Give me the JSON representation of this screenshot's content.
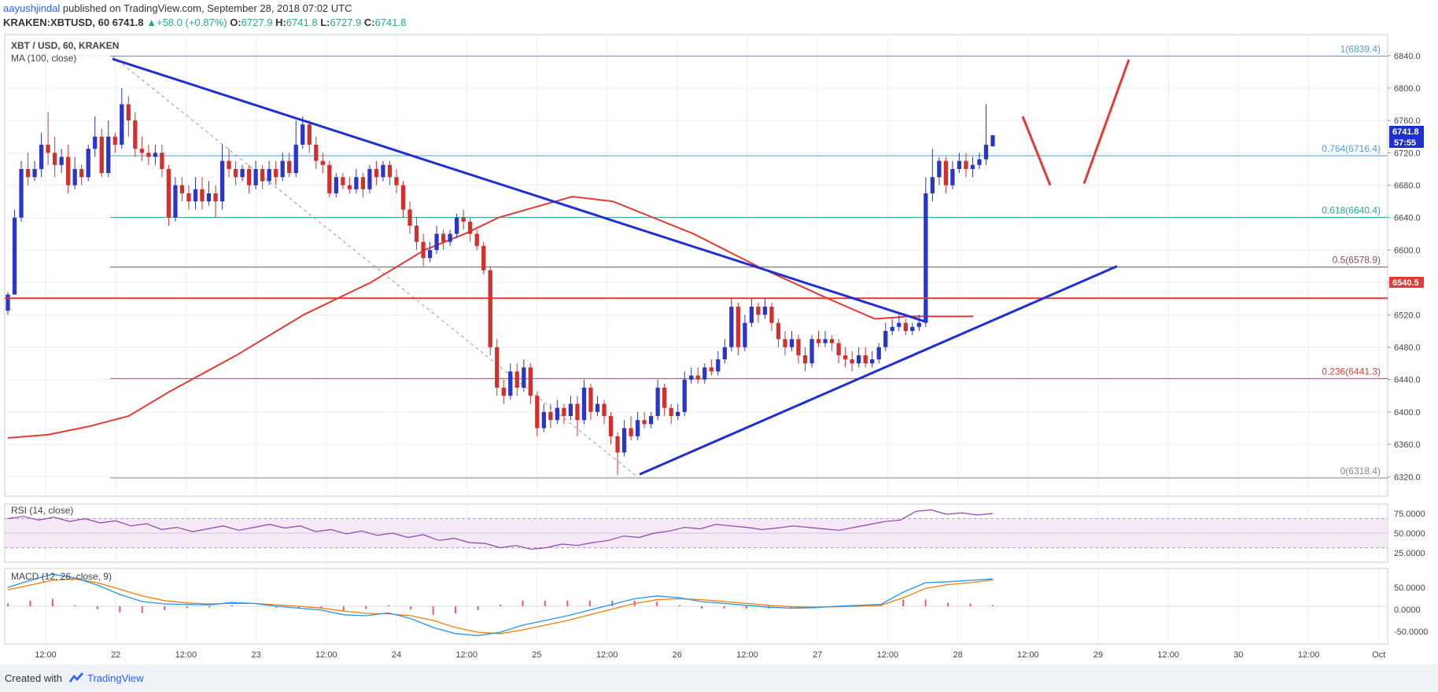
{
  "header": {
    "author": "aayushjindal",
    "published": " published on TradingView.com, September 28, 2018 07:02 UTC",
    "symbol": "KRAKEN:XBTUSD,",
    "interval": "60",
    "last": "6741.8",
    "change": "+58.0 (+0.87%)",
    "o_label": "O:",
    "o_value": "6727.9",
    "h_label": "H:",
    "h_value": "6741.8",
    "l_label": "L:",
    "l_value": "6727.9",
    "c_label": "C:",
    "c_value": "6741.8",
    "up_arrow": "▲"
  },
  "chart": {
    "title": "XBT / USD, 60, KRAKEN",
    "ma_label": "MA (100, close)",
    "price_badge": "6741.8",
    "countdown_badge": "57:55",
    "resistance_badge": "6540.5",
    "colors": {
      "up": "#2b35c7",
      "down": "#d32f2f",
      "ma": "#e53935",
      "trend": "#1f2fd1",
      "resistance": "#e53935",
      "forecast": "#e53935"
    }
  },
  "rsi": {
    "title": "RSI (14, close)",
    "ticks": [
      "75.0000",
      "50.0000",
      "25.0000"
    ]
  },
  "macd": {
    "title": "MACD (12, 26, close, 9)",
    "ticks": [
      "50.0000",
      "0.0000",
      "-50.0000"
    ]
  },
  "footer": {
    "created": "Created with",
    "brand": "TradingView"
  },
  "chart_data": {
    "type": "candlestick",
    "title": "XBT / USD, 60, KRAKEN",
    "y_ticks": [
      6840,
      6800,
      6760,
      6720,
      6680,
      6640,
      6600,
      6560,
      6520,
      6480,
      6440,
      6400,
      6360,
      6320
    ],
    "y_tick_labels": [
      "6840.0",
      "6800.0",
      "6760.0",
      "6720.0",
      "6680.0",
      "6640.0",
      "6600.0",
      "6560.0",
      "6520.0",
      "6480.0",
      "6440.0",
      "6400.0",
      "6360.0",
      "6320.0"
    ],
    "ylim": [
      6296,
      6866
    ],
    "x_ticks": [
      "12:00",
      "22",
      "12:00",
      "23",
      "12:00",
      "24",
      "12:00",
      "25",
      "12:00",
      "26",
      "12:00",
      "27",
      "12:00",
      "28",
      "12:00",
      "29",
      "12:00",
      "30",
      "12:00",
      "Oct"
    ],
    "fib_levels": [
      {
        "ratio": "1",
        "value": 6839.4,
        "label": "1(6839.4)",
        "color": "#4a9fd8"
      },
      {
        "ratio": "0.764",
        "value": 6716.4,
        "label": "0.764(6716.4)",
        "color": "#4a9fd8"
      },
      {
        "ratio": "0.618",
        "value": 6640.4,
        "label": "0.618(6640.4)",
        "color": "#26a69a"
      },
      {
        "ratio": "0.5",
        "value": 6578.9,
        "label": "0.5(6578.9)",
        "color": "#8b4a5a"
      },
      {
        "ratio": "0.236",
        "value": 6441.3,
        "label": "0.236(6441.3)",
        "color": "#e53935"
      },
      {
        "ratio": "0",
        "value": 6318.4,
        "label": "0(6318.4)",
        "color": "#888888"
      }
    ],
    "resistance": 6540.5,
    "last_price": 6741.8,
    "series": [
      {
        "name": "MA (100, close)",
        "values": [
          6368,
          6372,
          6382,
          6395,
          6425,
          6470,
          6520,
          6560,
          6600,
          6620,
          6640,
          6652,
          6666,
          6660,
          6620,
          6578,
          6540,
          6515,
          6518,
          6518
        ]
      }
    ],
    "ma_x": [
      0.0,
      0.03,
      0.06,
      0.09,
      0.12,
      0.17,
      0.22,
      0.27,
      0.31,
      0.34,
      0.365,
      0.39,
      0.42,
      0.45,
      0.51,
      0.56,
      0.61,
      0.645,
      0.67,
      0.718
    ],
    "candles": [
      [
        6525,
        6545,
        6520,
        6548
      ],
      [
        6545,
        6640,
        6545,
        6650
      ],
      [
        6640,
        6700,
        6635,
        6710
      ],
      [
        6700,
        6690,
        6680,
        6720
      ],
      [
        6690,
        6700,
        6685,
        6710
      ],
      [
        6700,
        6730,
        6690,
        6745
      ],
      [
        6730,
        6720,
        6705,
        6770
      ],
      [
        6720,
        6705,
        6690,
        6740
      ],
      [
        6705,
        6715,
        6695,
        6725
      ],
      [
        6715,
        6680,
        6670,
        6730
      ],
      [
        6680,
        6700,
        6675,
        6715
      ],
      [
        6700,
        6690,
        6680,
        6705
      ],
      [
        6690,
        6725,
        6685,
        6730
      ],
      [
        6725,
        6740,
        6715,
        6765
      ],
      [
        6740,
        6695,
        6690,
        6750
      ],
      [
        6695,
        6740,
        6690,
        6760
      ],
      [
        6740,
        6730,
        6720,
        6745
      ],
      [
        6730,
        6780,
        6725,
        6800
      ],
      [
        6780,
        6760,
        6740,
        6790
      ],
      [
        6760,
        6725,
        6715,
        6770
      ],
      [
        6725,
        6720,
        6710,
        6740
      ],
      [
        6720,
        6715,
        6705,
        6730
      ],
      [
        6715,
        6720,
        6705,
        6730
      ],
      [
        6720,
        6700,
        6690,
        6730
      ],
      [
        6700,
        6640,
        6630,
        6705
      ],
      [
        6640,
        6680,
        6635,
        6690
      ],
      [
        6680,
        6670,
        6660,
        6690
      ],
      [
        6670,
        6660,
        6650,
        6680
      ],
      [
        6660,
        6675,
        6650,
        6690
      ],
      [
        6675,
        6660,
        6650,
        6690
      ],
      [
        6660,
        6670,
        6655,
        6685
      ],
      [
        6670,
        6660,
        6640,
        6680
      ],
      [
        6660,
        6710,
        6650,
        6730
      ],
      [
        6710,
        6700,
        6690,
        6725
      ],
      [
        6700,
        6690,
        6680,
        6710
      ],
      [
        6690,
        6700,
        6685,
        6705
      ],
      [
        6700,
        6680,
        6670,
        6705
      ],
      [
        6680,
        6700,
        6675,
        6710
      ],
      [
        6700,
        6685,
        6675,
        6705
      ],
      [
        6685,
        6700,
        6680,
        6710
      ],
      [
        6700,
        6690,
        6680,
        6710
      ],
      [
        6690,
        6710,
        6685,
        6720
      ],
      [
        6710,
        6695,
        6690,
        6720
      ],
      [
        6695,
        6730,
        6690,
        6760
      ],
      [
        6730,
        6755,
        6725,
        6765
      ],
      [
        6755,
        6730,
        6720,
        6760
      ],
      [
        6730,
        6710,
        6700,
        6740
      ],
      [
        6710,
        6705,
        6695,
        6720
      ],
      [
        6705,
        6670,
        6665,
        6710
      ],
      [
        6670,
        6690,
        6665,
        6695
      ],
      [
        6690,
        6680,
        6675,
        6695
      ],
      [
        6680,
        6675,
        6670,
        6690
      ],
      [
        6675,
        6690,
        6670,
        6700
      ],
      [
        6690,
        6675,
        6665,
        6695
      ],
      [
        6675,
        6700,
        6670,
        6705
      ],
      [
        6700,
        6690,
        6680,
        6710
      ],
      [
        6690,
        6705,
        6685,
        6710
      ],
      [
        6705,
        6690,
        6680,
        6710
      ],
      [
        6690,
        6680,
        6670,
        6700
      ],
      [
        6680,
        6650,
        6640,
        6685
      ],
      [
        6650,
        6630,
        6620,
        6660
      ],
      [
        6630,
        6610,
        6600,
        6640
      ],
      [
        6610,
        6590,
        6580,
        6620
      ],
      [
        6590,
        6600,
        6585,
        6610
      ],
      [
        6600,
        6620,
        6595,
        6630
      ],
      [
        6620,
        6610,
        6600,
        6625
      ],
      [
        6610,
        6620,
        6605,
        6625
      ],
      [
        6620,
        6640,
        6615,
        6645
      ],
      [
        6640,
        6635,
        6625,
        6650
      ],
      [
        6635,
        6620,
        6610,
        6640
      ],
      [
        6620,
        6605,
        6600,
        6625
      ],
      [
        6605,
        6575,
        6570,
        6610
      ],
      [
        6575,
        6480,
        6470,
        6580
      ],
      [
        6480,
        6430,
        6420,
        6490
      ],
      [
        6430,
        6420,
        6410,
        6440
      ],
      [
        6420,
        6450,
        6415,
        6460
      ],
      [
        6450,
        6430,
        6420,
        6460
      ],
      [
        6430,
        6455,
        6425,
        6465
      ],
      [
        6455,
        6420,
        6410,
        6460
      ],
      [
        6420,
        6380,
        6370,
        6425
      ],
      [
        6380,
        6400,
        6375,
        6410
      ],
      [
        6400,
        6390,
        6380,
        6410
      ],
      [
        6390,
        6405,
        6385,
        6415
      ],
      [
        6405,
        6395,
        6385,
        6410
      ],
      [
        6395,
        6410,
        6390,
        6420
      ],
      [
        6410,
        6390,
        6370,
        6420
      ],
      [
        6390,
        6430,
        6385,
        6440
      ],
      [
        6430,
        6400,
        6390,
        6435
      ],
      [
        6400,
        6410,
        6395,
        6420
      ],
      [
        6410,
        6395,
        6385,
        6415
      ],
      [
        6395,
        6370,
        6360,
        6400
      ],
      [
        6370,
        6350,
        6322,
        6375
      ],
      [
        6350,
        6380,
        6345,
        6390
      ],
      [
        6380,
        6370,
        6365,
        6395
      ],
      [
        6370,
        6390,
        6365,
        6400
      ],
      [
        6390,
        6385,
        6380,
        6400
      ],
      [
        6385,
        6395,
        6380,
        6400
      ],
      [
        6395,
        6430,
        6390,
        6440
      ],
      [
        6430,
        6405,
        6395,
        6435
      ],
      [
        6405,
        6395,
        6385,
        6410
      ],
      [
        6395,
        6400,
        6390,
        6410
      ],
      [
        6400,
        6440,
        6395,
        6450
      ],
      [
        6440,
        6445,
        6435,
        6455
      ],
      [
        6445,
        6440,
        6435,
        6455
      ],
      [
        6440,
        6455,
        6435,
        6460
      ],
      [
        6455,
        6450,
        6445,
        6465
      ],
      [
        6450,
        6465,
        6445,
        6475
      ],
      [
        6465,
        6480,
        6460,
        6490
      ],
      [
        6480,
        6530,
        6475,
        6540
      ],
      [
        6530,
        6480,
        6470,
        6535
      ],
      [
        6480,
        6510,
        6475,
        6520
      ],
      [
        6510,
        6530,
        6505,
        6540
      ],
      [
        6530,
        6520,
        6510,
        6535
      ],
      [
        6520,
        6530,
        6515,
        6540
      ],
      [
        6530,
        6510,
        6500,
        6535
      ],
      [
        6510,
        6490,
        6480,
        6515
      ],
      [
        6490,
        6480,
        6470,
        6500
      ],
      [
        6480,
        6490,
        6475,
        6500
      ],
      [
        6490,
        6470,
        6460,
        6495
      ],
      [
        6470,
        6460,
        6450,
        6480
      ],
      [
        6460,
        6490,
        6455,
        6495
      ],
      [
        6490,
        6485,
        6480,
        6500
      ],
      [
        6485,
        6490,
        6480,
        6500
      ],
      [
        6490,
        6485,
        6475,
        6495
      ],
      [
        6485,
        6470,
        6460,
        6490
      ],
      [
        6470,
        6465,
        6455,
        6480
      ],
      [
        6465,
        6460,
        6450,
        6475
      ],
      [
        6460,
        6470,
        6455,
        6480
      ],
      [
        6470,
        6460,
        6455,
        6480
      ],
      [
        6460,
        6465,
        6455,
        6475
      ],
      [
        6465,
        6480,
        6460,
        6485
      ],
      [
        6480,
        6500,
        6475,
        6510
      ],
      [
        6500,
        6505,
        6495,
        6515
      ],
      [
        6505,
        6510,
        6500,
        6520
      ],
      [
        6510,
        6500,
        6495,
        6515
      ],
      [
        6500,
        6505,
        6495,
        6510
      ],
      [
        6505,
        6510,
        6500,
        6520
      ],
      [
        6510,
        6670,
        6505,
        6690
      ],
      [
        6670,
        6690,
        6660,
        6725
      ],
      [
        6690,
        6710,
        6680,
        6715
      ],
      [
        6710,
        6680,
        6670,
        6715
      ],
      [
        6680,
        6700,
        6675,
        6710
      ],
      [
        6700,
        6710,
        6695,
        6720
      ],
      [
        6710,
        6700,
        6690,
        6720
      ],
      [
        6700,
        6705,
        6690,
        6715
      ],
      [
        6705,
        6712,
        6700,
        6720
      ],
      [
        6712,
        6730,
        6705,
        6780
      ],
      [
        6728,
        6741.8,
        6727.9,
        6741.8
      ]
    ]
  }
}
